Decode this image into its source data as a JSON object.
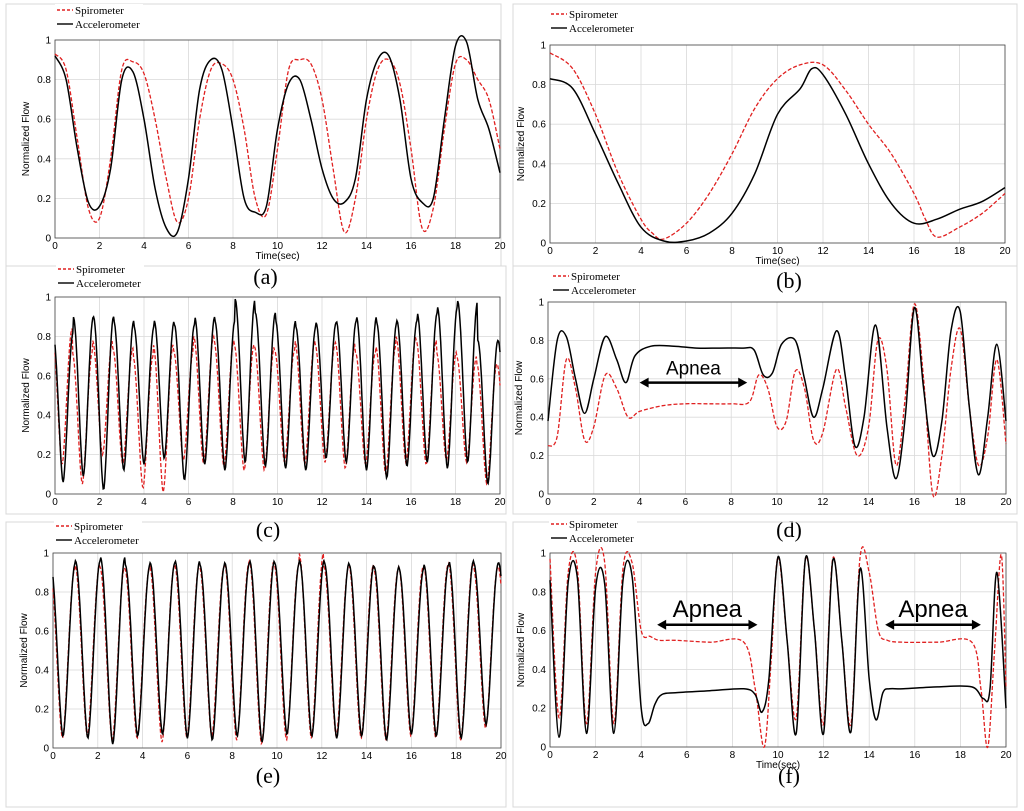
{
  "chart_data": [
    {
      "type": "line",
      "caption": "(a)",
      "xlabel": "Time(sec)",
      "ylabel": "Normalized Flow",
      "xlim": [
        0,
        20
      ],
      "ylim": [
        0,
        1
      ],
      "xticks": [
        "0",
        "2",
        "4",
        "6",
        "8",
        "10",
        "12",
        "14",
        "16",
        "18",
        "20"
      ],
      "yticks": [
        "0",
        "0.2",
        "0.4",
        "0.6",
        "0.8",
        "1"
      ],
      "legend": "top-left",
      "grid": true,
      "series": [
        {
          "name": "Spirometer",
          "color": "#e02020",
          "style": "dashed",
          "x": [
            0,
            0.5,
            1,
            1.5,
            2,
            2.5,
            3,
            3.5,
            4,
            4.5,
            5,
            5.5,
            6,
            6.5,
            7,
            7.5,
            8,
            8.5,
            9,
            9.5,
            10,
            10.5,
            11,
            11.5,
            12,
            12.5,
            13,
            13.5,
            14,
            14.5,
            15,
            15.5,
            16,
            16.5,
            17,
            17.5,
            18,
            18.5,
            19,
            19.5,
            20
          ],
          "y": [
            0.93,
            0.85,
            0.5,
            0.15,
            0.1,
            0.4,
            0.85,
            0.89,
            0.83,
            0.6,
            0.3,
            0.08,
            0.2,
            0.6,
            0.85,
            0.88,
            0.8,
            0.55,
            0.2,
            0.12,
            0.45,
            0.85,
            0.9,
            0.88,
            0.7,
            0.35,
            0.03,
            0.2,
            0.6,
            0.85,
            0.9,
            0.78,
            0.45,
            0.05,
            0.15,
            0.55,
            0.88,
            0.9,
            0.8,
            0.7,
            0.45
          ]
        },
        {
          "name": "Accelerometer",
          "color": "#000000",
          "style": "solid",
          "x": [
            0,
            0.5,
            1,
            1.5,
            2,
            2.5,
            3,
            3.5,
            4,
            4.5,
            5,
            5.5,
            6,
            6.5,
            7,
            7.5,
            8,
            8.5,
            9,
            9.5,
            10,
            10.5,
            11,
            11.5,
            12,
            12.5,
            13,
            13.5,
            14,
            14.5,
            15,
            15.5,
            16,
            16.5,
            17,
            17.5,
            18,
            18.5,
            19,
            19.5,
            20
          ],
          "y": [
            0.92,
            0.8,
            0.45,
            0.18,
            0.16,
            0.35,
            0.8,
            0.84,
            0.6,
            0.25,
            0.05,
            0.03,
            0.3,
            0.75,
            0.9,
            0.85,
            0.55,
            0.2,
            0.13,
            0.16,
            0.55,
            0.78,
            0.8,
            0.6,
            0.35,
            0.2,
            0.18,
            0.3,
            0.7,
            0.9,
            0.92,
            0.7,
            0.3,
            0.18,
            0.2,
            0.6,
            0.97,
            0.99,
            0.7,
            0.55,
            0.33
          ]
        }
      ]
    },
    {
      "type": "line",
      "caption": "(b)",
      "xlabel": "Time(sec)",
      "ylabel": "Normalized Flow",
      "xlim": [
        0,
        20
      ],
      "ylim": [
        0,
        1
      ],
      "xticks": [
        "0",
        "2",
        "4",
        "6",
        "8",
        "10",
        "12",
        "14",
        "16",
        "18",
        "20"
      ],
      "yticks": [
        "0",
        "0.2",
        "0.4",
        "0.6",
        "0.8",
        "1"
      ],
      "legend": "top-left",
      "grid": true,
      "series": [
        {
          "name": "Spirometer",
          "color": "#e02020",
          "style": "dashed",
          "x": [
            0,
            1,
            2,
            3,
            4,
            4.5,
            5,
            6,
            7,
            8,
            9,
            10,
            11,
            12,
            13,
            14,
            15,
            16,
            16.5,
            17,
            18,
            19,
            20
          ],
          "y": [
            0.96,
            0.88,
            0.65,
            0.35,
            0.12,
            0.05,
            0.02,
            0.1,
            0.25,
            0.45,
            0.68,
            0.83,
            0.9,
            0.9,
            0.77,
            0.6,
            0.45,
            0.25,
            0.12,
            0.03,
            0.08,
            0.15,
            0.25
          ]
        },
        {
          "name": "Accelerometer",
          "color": "#000000",
          "style": "solid",
          "x": [
            0,
            1,
            2,
            3,
            4,
            5,
            6,
            7,
            8,
            9,
            10,
            11,
            11.5,
            12,
            13,
            14,
            15,
            16,
            17,
            18,
            19,
            20
          ],
          "y": [
            0.83,
            0.78,
            0.55,
            0.3,
            0.08,
            0.01,
            0.01,
            0.05,
            0.15,
            0.35,
            0.65,
            0.78,
            0.88,
            0.85,
            0.65,
            0.4,
            0.2,
            0.1,
            0.12,
            0.17,
            0.21,
            0.28
          ]
        }
      ]
    },
    {
      "type": "line",
      "caption": "(c)",
      "xlabel": "",
      "ylabel": "Normalized Flow",
      "xlim": [
        0,
        20
      ],
      "ylim": [
        0,
        1
      ],
      "xticks": [
        "0",
        "2",
        "4",
        "6",
        "8",
        "10",
        "12",
        "14",
        "16",
        "18",
        "20"
      ],
      "yticks": [
        "0",
        "0.2",
        "0.4",
        "0.6",
        "0.8",
        "1"
      ],
      "legend": "top-left",
      "grid": true,
      "series": [
        {
          "name": "Spirometer",
          "color": "#e02020",
          "style": "dashed",
          "oscillation": {
            "periods": 22,
            "phase": 0.15,
            "peaks": [
              0.84,
              0.72,
              0.78,
              0.74,
              0.7,
              0.76,
              0.73,
              0.8,
              0.78,
              0.76,
              0.75,
              0.73,
              0.78,
              0.76,
              0.77,
              0.72,
              0.75,
              0.8,
              0.78,
              0.72,
              0.7,
              0.66
            ],
            "troughs": [
              0.15,
              0.05,
              0.2,
              0.15,
              0.03,
              0.01,
              0.17,
              0.15,
              0.14,
              0.12,
              0.12,
              0.16,
              0.15,
              0.16,
              0.13,
              0.15,
              0.1,
              0.16,
              0.15,
              0.17,
              0.16,
              0.05
            ]
          }
        },
        {
          "name": "Accelerometer",
          "color": "#000000",
          "style": "solid",
          "oscillation": {
            "periods": 22,
            "phase": 0.1,
            "peaks": [
              0.82,
              0.9,
              0.9,
              0.88,
              0.85,
              0.88,
              0.86,
              0.9,
              0.88,
              0.99,
              0.92,
              0.88,
              0.85,
              0.87,
              0.88,
              0.9,
              0.87,
              0.88,
              0.92,
              0.95,
              0.98,
              0.78
            ],
            "troughs": [
              0.06,
              0.09,
              0.02,
              0.12,
              0.15,
              0.18,
              0.07,
              0.15,
              0.12,
              0.16,
              0.14,
              0.13,
              0.12,
              0.18,
              0.16,
              0.12,
              0.08,
              0.14,
              0.16,
              0.13,
              0.16,
              0.05
            ]
          }
        }
      ]
    },
    {
      "type": "line",
      "caption": "(d)",
      "xlabel": "",
      "ylabel": "Normalized Flow",
      "xlim": [
        0,
        20
      ],
      "ylim": [
        0,
        1
      ],
      "xticks": [
        "0",
        "2",
        "4",
        "6",
        "8",
        "10",
        "12",
        "14",
        "16",
        "18",
        "20"
      ],
      "yticks": [
        "0",
        "0.2",
        "0.4",
        "0.6",
        "0.8",
        "1"
      ],
      "legend": "top-left",
      "grid": true,
      "annotations": [
        {
          "text": "Apnea",
          "x_from": 4,
          "x_to": 8.7,
          "y": 0.58
        }
      ],
      "series": [
        {
          "name": "Spirometer",
          "color": "#e02020",
          "style": "dashed",
          "x": [
            0,
            0.4,
            0.8,
            1.2,
            1.6,
            2,
            2.5,
            3,
            3.5,
            4,
            5,
            6,
            7,
            8,
            8.8,
            9.2,
            9.6,
            10,
            10.4,
            10.8,
            11.2,
            11.6,
            12,
            12.6,
            13,
            13.5,
            14,
            14.4,
            14.8,
            15.2,
            15.6,
            16,
            16.4,
            16.8,
            17.2,
            17.6,
            18,
            18.4,
            18.8,
            19.2,
            19.6,
            20
          ],
          "y": [
            0.25,
            0.3,
            0.7,
            0.55,
            0.28,
            0.35,
            0.62,
            0.55,
            0.4,
            0.43,
            0.46,
            0.47,
            0.47,
            0.47,
            0.48,
            0.62,
            0.55,
            0.35,
            0.38,
            0.64,
            0.55,
            0.28,
            0.32,
            0.65,
            0.45,
            0.2,
            0.35,
            0.8,
            0.65,
            0.15,
            0.5,
            0.99,
            0.6,
            0.0,
            0.2,
            0.65,
            0.86,
            0.45,
            0.15,
            0.3,
            0.7,
            0.26
          ]
        },
        {
          "name": "Accelerometer",
          "color": "#000000",
          "style": "solid",
          "x": [
            0,
            0.4,
            0.8,
            1.2,
            1.6,
            2,
            2.5,
            3,
            3.4,
            3.8,
            4.5,
            5.5,
            6.5,
            7.5,
            8.5,
            9,
            9.4,
            9.8,
            10.2,
            10.8,
            11.2,
            11.6,
            12,
            12.6,
            13,
            13.4,
            13.8,
            14.3,
            14.8,
            15.2,
            15.6,
            16,
            16.4,
            16.8,
            17.2,
            17.6,
            18,
            18.4,
            18.8,
            19.2,
            19.6,
            20
          ],
          "y": [
            0.38,
            0.8,
            0.82,
            0.6,
            0.42,
            0.6,
            0.82,
            0.7,
            0.58,
            0.72,
            0.77,
            0.77,
            0.76,
            0.76,
            0.76,
            0.75,
            0.62,
            0.63,
            0.78,
            0.8,
            0.6,
            0.4,
            0.55,
            0.85,
            0.6,
            0.25,
            0.4,
            0.88,
            0.35,
            0.08,
            0.4,
            0.97,
            0.55,
            0.2,
            0.38,
            0.85,
            0.95,
            0.45,
            0.1,
            0.4,
            0.78,
            0.38
          ]
        }
      ]
    },
    {
      "type": "line",
      "caption": "(e)",
      "xlabel": "",
      "ylabel": "Normalized Flow",
      "xlim": [
        0,
        20
      ],
      "ylim": [
        0,
        1
      ],
      "xticks": [
        "0",
        "2",
        "4",
        "6",
        "8",
        "10",
        "12",
        "14",
        "16",
        "18",
        "20"
      ],
      "yticks": [
        "0",
        "0.2",
        "0.4",
        "0.6",
        "0.8",
        "1"
      ],
      "legend": "top-left",
      "grid": true,
      "series": [
        {
          "name": "Spirometer",
          "color": "#e02020",
          "style": "dashed",
          "oscillation": {
            "periods": 18,
            "phase": 0.12,
            "peaks": [
              0.92,
              0.94,
              0.93,
              0.92,
              0.93,
              0.94,
              0.93,
              0.95,
              0.96,
              0.94,
              1.0,
              0.93,
              0.94,
              0.92,
              0.93,
              0.94,
              0.95,
              0.93
            ],
            "troughs": [
              0.05,
              0.06,
              0.04,
              0.05,
              0.03,
              0.05,
              0.06,
              0.04,
              0.02,
              0.04,
              0.05,
              0.06,
              0.05,
              0.04,
              0.06,
              0.05,
              0.04,
              0.1
            ]
          }
        },
        {
          "name": "Accelerometer",
          "color": "#000000",
          "style": "solid",
          "oscillation": {
            "periods": 18,
            "phase": 0.1,
            "peaks": [
              0.95,
              0.96,
              0.98,
              0.94,
              0.95,
              0.96,
              0.94,
              0.95,
              0.96,
              0.95,
              0.96,
              0.95,
              0.94,
              0.93,
              0.92,
              0.94,
              0.96,
              0.95
            ],
            "troughs": [
              0.06,
              0.05,
              0.02,
              0.06,
              0.07,
              0.05,
              0.04,
              0.06,
              0.03,
              0.07,
              0.06,
              0.05,
              0.06,
              0.04,
              0.07,
              0.06,
              0.05,
              0.12
            ]
          }
        }
      ]
    },
    {
      "type": "line",
      "caption": "(f)",
      "xlabel": "Time(sec)",
      "ylabel": "Normalized Flow",
      "xlim": [
        0,
        20
      ],
      "ylim": [
        0,
        1
      ],
      "xticks": [
        "0",
        "2",
        "4",
        "6",
        "8",
        "10",
        "12",
        "14",
        "16",
        "18",
        "20"
      ],
      "yticks": [
        "0",
        "0.2",
        "0.4",
        "0.6",
        "0.8",
        "1"
      ],
      "legend": "top-left",
      "grid": true,
      "annotations": [
        {
          "text": "Apnea",
          "x_from": 4.7,
          "x_to": 9.1,
          "y": 0.63
        },
        {
          "text": "Apnea",
          "x_from": 14.7,
          "x_to": 18.9,
          "y": 0.63
        }
      ],
      "series": [
        {
          "name": "Spirometer",
          "color": "#e02020",
          "style": "dashed",
          "x": [
            0,
            0.4,
            0.8,
            1.2,
            1.6,
            2.0,
            2.4,
            2.8,
            3.2,
            3.6,
            4.0,
            4.4,
            4.8,
            5.5,
            7,
            8.5,
            9.0,
            9.4,
            9.7,
            10.0,
            10.4,
            10.8,
            11.2,
            11.6,
            12.0,
            12.4,
            12.8,
            13.2,
            13.6,
            14.0,
            14.4,
            14.8,
            15.5,
            17,
            18.5,
            18.9,
            19.2,
            19.5,
            19.8,
            20
          ],
          "y": [
            0.97,
            0.15,
            0.9,
            0.92,
            0.12,
            0.9,
            0.95,
            0.12,
            0.92,
            0.95,
            0.6,
            0.57,
            0.55,
            0.55,
            0.54,
            0.54,
            0.3,
            0.0,
            0.45,
            0.98,
            0.55,
            0.15,
            0.97,
            0.6,
            0.12,
            0.97,
            0.55,
            0.12,
            0.98,
            0.9,
            0.6,
            0.55,
            0.54,
            0.54,
            0.54,
            0.3,
            0.0,
            0.5,
            0.99,
            0.3
          ]
        },
        {
          "name": "Accelerometer",
          "color": "#000000",
          "style": "solid",
          "x": [
            0,
            0.4,
            0.8,
            1.2,
            1.6,
            2.0,
            2.4,
            2.8,
            3.2,
            3.6,
            4.0,
            4.3,
            4.6,
            4.9,
            5.5,
            7,
            8.5,
            9.0,
            9.3,
            9.6,
            10.0,
            10.4,
            10.8,
            11.2,
            11.6,
            12.0,
            12.4,
            12.8,
            13.2,
            13.6,
            14.0,
            14.3,
            14.6,
            14.9,
            15.5,
            17,
            18.5,
            19.0,
            19.3,
            19.6,
            20
          ],
          "y": [
            0.86,
            0.05,
            0.85,
            0.87,
            0.07,
            0.82,
            0.84,
            0.07,
            0.86,
            0.88,
            0.2,
            0.12,
            0.22,
            0.27,
            0.28,
            0.29,
            0.3,
            0.27,
            0.18,
            0.35,
            0.98,
            0.55,
            0.07,
            0.97,
            0.6,
            0.07,
            0.96,
            0.55,
            0.08,
            0.92,
            0.35,
            0.14,
            0.28,
            0.3,
            0.3,
            0.31,
            0.31,
            0.25,
            0.3,
            0.9,
            0.2
          ]
        }
      ]
    }
  ]
}
